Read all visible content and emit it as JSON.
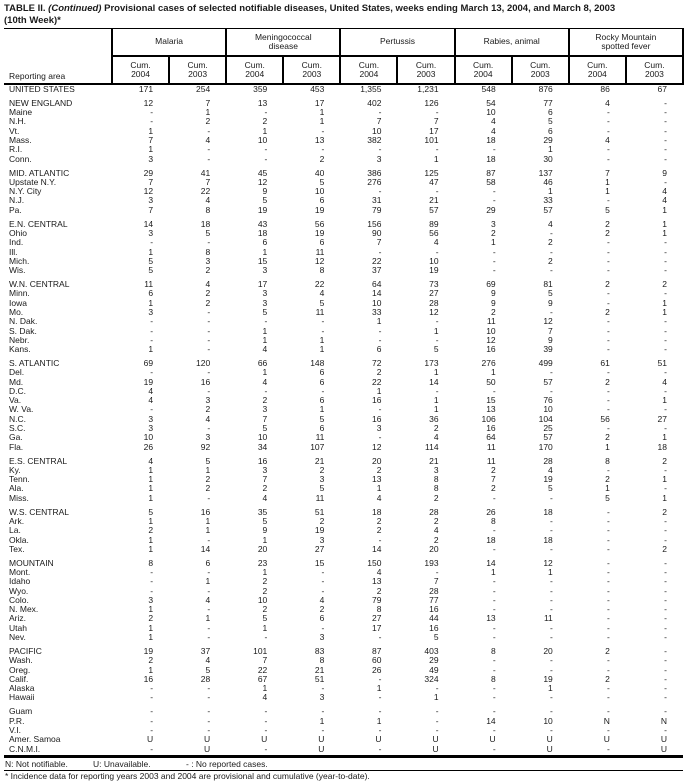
{
  "title": {
    "prefix": "TABLE II.",
    "continued": "(Continued)",
    "rest": "Provisional cases of selected notifiable diseases, United States, weeks ending March 13, 2004, and March 8, 2003",
    "line2": "(10th Week)*"
  },
  "table": {
    "reporting_area_label": "Reporting area",
    "groups": [
      "Malaria",
      "Meningococcal\ndisease",
      "Pertussis",
      "Rabies, animal",
      "Rocky Mountain\nspotted fever"
    ],
    "col_label": "Cum.",
    "col_years": [
      "2004",
      "2003"
    ],
    "rows": [
      {
        "area": "UNITED STATES",
        "values": [
          "171",
          "254",
          "359",
          "453",
          "1,355",
          "1,231",
          "548",
          "876",
          "86",
          "67"
        ],
        "gap_after": true
      },
      {
        "area": "NEW ENGLAND",
        "values": [
          "12",
          "7",
          "13",
          "17",
          "402",
          "126",
          "54",
          "77",
          "4",
          "-"
        ]
      },
      {
        "area": "Maine",
        "values": [
          "-",
          "1",
          "-",
          "1",
          "-",
          "-",
          "10",
          "6",
          "-",
          "-"
        ]
      },
      {
        "area": "N.H.",
        "values": [
          "-",
          "2",
          "2",
          "1",
          "7",
          "7",
          "4",
          "5",
          "-",
          "-"
        ]
      },
      {
        "area": "Vt.",
        "values": [
          "1",
          "-",
          "1",
          "-",
          "10",
          "17",
          "4",
          "6",
          "-",
          "-"
        ]
      },
      {
        "area": "Mass.",
        "values": [
          "7",
          "4",
          "10",
          "13",
          "382",
          "101",
          "18",
          "29",
          "4",
          "-"
        ]
      },
      {
        "area": "R.I.",
        "values": [
          "1",
          "-",
          "-",
          "-",
          "-",
          "-",
          "-",
          "1",
          "-",
          "-"
        ]
      },
      {
        "area": "Conn.",
        "values": [
          "3",
          "-",
          "-",
          "2",
          "3",
          "1",
          "18",
          "30",
          "-",
          "-"
        ],
        "gap_after": true
      },
      {
        "area": "MID. ATLANTIC",
        "values": [
          "29",
          "41",
          "45",
          "40",
          "386",
          "125",
          "87",
          "137",
          "7",
          "9"
        ]
      },
      {
        "area": "Upstate N.Y.",
        "values": [
          "7",
          "7",
          "12",
          "5",
          "276",
          "47",
          "58",
          "46",
          "1",
          "-"
        ]
      },
      {
        "area": "N.Y. City",
        "values": [
          "12",
          "22",
          "9",
          "10",
          "-",
          "-",
          "-",
          "1",
          "1",
          "4"
        ]
      },
      {
        "area": "N.J.",
        "values": [
          "3",
          "4",
          "5",
          "6",
          "31",
          "21",
          "-",
          "33",
          "-",
          "4"
        ]
      },
      {
        "area": "Pa.",
        "values": [
          "7",
          "8",
          "19",
          "19",
          "79",
          "57",
          "29",
          "57",
          "5",
          "1"
        ],
        "gap_after": true
      },
      {
        "area": "E.N. CENTRAL",
        "values": [
          "14",
          "18",
          "43",
          "56",
          "156",
          "89",
          "3",
          "4",
          "2",
          "1"
        ]
      },
      {
        "area": "Ohio",
        "values": [
          "3",
          "5",
          "18",
          "19",
          "90",
          "56",
          "2",
          "-",
          "2",
          "1"
        ]
      },
      {
        "area": "Ind.",
        "values": [
          "-",
          "-",
          "6",
          "6",
          "7",
          "4",
          "1",
          "2",
          "-",
          "-"
        ]
      },
      {
        "area": "Ill.",
        "values": [
          "1",
          "8",
          "1",
          "11",
          "-",
          "-",
          "-",
          "-",
          "-",
          "-"
        ]
      },
      {
        "area": "Mich.",
        "values": [
          "5",
          "3",
          "15",
          "12",
          "22",
          "10",
          "-",
          "2",
          "-",
          "-"
        ]
      },
      {
        "area": "Wis.",
        "values": [
          "5",
          "2",
          "3",
          "8",
          "37",
          "19",
          "-",
          "-",
          "-",
          "-"
        ],
        "gap_after": true
      },
      {
        "area": "W.N. CENTRAL",
        "values": [
          "11",
          "4",
          "17",
          "22",
          "64",
          "73",
          "69",
          "81",
          "2",
          "2"
        ]
      },
      {
        "area": "Minn.",
        "values": [
          "6",
          "2",
          "3",
          "4",
          "14",
          "27",
          "9",
          "5",
          "-",
          "-"
        ]
      },
      {
        "area": "Iowa",
        "values": [
          "1",
          "2",
          "3",
          "5",
          "10",
          "28",
          "9",
          "9",
          "-",
          "1"
        ]
      },
      {
        "area": "Mo.",
        "values": [
          "3",
          "-",
          "5",
          "11",
          "33",
          "12",
          "2",
          "-",
          "2",
          "1"
        ]
      },
      {
        "area": "N. Dak.",
        "values": [
          "-",
          "-",
          "-",
          "-",
          "1",
          "-",
          "11",
          "12",
          "-",
          "-"
        ]
      },
      {
        "area": "S. Dak.",
        "values": [
          "-",
          "-",
          "1",
          "-",
          "-",
          "1",
          "10",
          "7",
          "-",
          "-"
        ]
      },
      {
        "area": "Nebr.",
        "values": [
          "-",
          "-",
          "1",
          "1",
          "-",
          "-",
          "12",
          "9",
          "-",
          "-"
        ]
      },
      {
        "area": "Kans.",
        "values": [
          "1",
          "-",
          "4",
          "1",
          "6",
          "5",
          "16",
          "39",
          "-",
          "-"
        ],
        "gap_after": true
      },
      {
        "area": "S. ATLANTIC",
        "values": [
          "69",
          "120",
          "66",
          "148",
          "72",
          "173",
          "276",
          "499",
          "61",
          "51"
        ]
      },
      {
        "area": "Del.",
        "values": [
          "-",
          "-",
          "1",
          "6",
          "2",
          "1",
          "1",
          "-",
          "-",
          "-"
        ]
      },
      {
        "area": "Md.",
        "values": [
          "19",
          "16",
          "4",
          "6",
          "22",
          "14",
          "50",
          "57",
          "2",
          "4"
        ]
      },
      {
        "area": "D.C.",
        "values": [
          "4",
          "-",
          "-",
          "-",
          "1",
          "-",
          "-",
          "-",
          "-",
          "-"
        ]
      },
      {
        "area": "Va.",
        "values": [
          "4",
          "3",
          "2",
          "6",
          "16",
          "1",
          "15",
          "76",
          "-",
          "1"
        ]
      },
      {
        "area": "W. Va.",
        "values": [
          "-",
          "2",
          "3",
          "1",
          "-",
          "1",
          "13",
          "10",
          "-",
          "-"
        ]
      },
      {
        "area": "N.C.",
        "values": [
          "3",
          "4",
          "7",
          "5",
          "16",
          "36",
          "106",
          "104",
          "56",
          "27"
        ]
      },
      {
        "area": "S.C.",
        "values": [
          "3",
          "-",
          "5",
          "6",
          "3",
          "2",
          "16",
          "25",
          "-",
          "-"
        ]
      },
      {
        "area": "Ga.",
        "values": [
          "10",
          "3",
          "10",
          "11",
          "-",
          "4",
          "64",
          "57",
          "2",
          "1"
        ]
      },
      {
        "area": "Fla.",
        "values": [
          "26",
          "92",
          "34",
          "107",
          "12",
          "114",
          "11",
          "170",
          "1",
          "18"
        ],
        "gap_after": true
      },
      {
        "area": "E.S. CENTRAL",
        "values": [
          "4",
          "5",
          "16",
          "21",
          "20",
          "21",
          "11",
          "28",
          "8",
          "2"
        ]
      },
      {
        "area": "Ky.",
        "values": [
          "1",
          "1",
          "3",
          "2",
          "2",
          "3",
          "2",
          "4",
          "-",
          "-"
        ]
      },
      {
        "area": "Tenn.",
        "values": [
          "1",
          "2",
          "7",
          "3",
          "13",
          "8",
          "7",
          "19",
          "2",
          "1"
        ]
      },
      {
        "area": "Ala.",
        "values": [
          "1",
          "2",
          "2",
          "5",
          "1",
          "8",
          "2",
          "5",
          "1",
          "-"
        ]
      },
      {
        "area": "Miss.",
        "values": [
          "1",
          "-",
          "4",
          "11",
          "4",
          "2",
          "-",
          "-",
          "5",
          "1"
        ],
        "gap_after": true
      },
      {
        "area": "W.S. CENTRAL",
        "values": [
          "5",
          "16",
          "35",
          "51",
          "18",
          "28",
          "26",
          "18",
          "-",
          "2"
        ]
      },
      {
        "area": "Ark.",
        "values": [
          "1",
          "1",
          "5",
          "2",
          "2",
          "2",
          "8",
          "-",
          "-",
          "-"
        ]
      },
      {
        "area": "La.",
        "values": [
          "2",
          "1",
          "9",
          "19",
          "2",
          "4",
          "-",
          "-",
          "-",
          "-"
        ]
      },
      {
        "area": "Okla.",
        "values": [
          "1",
          "-",
          "1",
          "3",
          "-",
          "2",
          "18",
          "18",
          "-",
          "-"
        ]
      },
      {
        "area": "Tex.",
        "values": [
          "1",
          "14",
          "20",
          "27",
          "14",
          "20",
          "-",
          "-",
          "-",
          "2"
        ],
        "gap_after": true
      },
      {
        "area": "MOUNTAIN",
        "values": [
          "8",
          "6",
          "23",
          "15",
          "150",
          "193",
          "14",
          "12",
          "-",
          "-"
        ]
      },
      {
        "area": "Mont.",
        "values": [
          "-",
          "-",
          "1",
          "-",
          "4",
          "-",
          "1",
          "1",
          "-",
          "-"
        ]
      },
      {
        "area": "Idaho",
        "values": [
          "-",
          "1",
          "2",
          "-",
          "13",
          "7",
          "-",
          "-",
          "-",
          "-"
        ]
      },
      {
        "area": "Wyo.",
        "values": [
          "-",
          "-",
          "2",
          "-",
          "2",
          "28",
          "-",
          "-",
          "-",
          "-"
        ]
      },
      {
        "area": "Colo.",
        "values": [
          "3",
          "4",
          "10",
          "4",
          "79",
          "77",
          "-",
          "-",
          "-",
          "-"
        ]
      },
      {
        "area": "N. Mex.",
        "values": [
          "1",
          "-",
          "2",
          "2",
          "8",
          "16",
          "-",
          "-",
          "-",
          "-"
        ]
      },
      {
        "area": "Ariz.",
        "values": [
          "2",
          "1",
          "5",
          "6",
          "27",
          "44",
          "13",
          "11",
          "-",
          "-"
        ]
      },
      {
        "area": "Utah",
        "values": [
          "1",
          "-",
          "1",
          "-",
          "17",
          "16",
          "-",
          "-",
          "-",
          "-"
        ]
      },
      {
        "area": "Nev.",
        "values": [
          "1",
          "-",
          "-",
          "3",
          "-",
          "5",
          "-",
          "-",
          "-",
          "-"
        ],
        "gap_after": true
      },
      {
        "area": "PACIFIC",
        "values": [
          "19",
          "37",
          "101",
          "83",
          "87",
          "403",
          "8",
          "20",
          "2",
          "-"
        ]
      },
      {
        "area": "Wash.",
        "values": [
          "2",
          "4",
          "7",
          "8",
          "60",
          "29",
          "-",
          "-",
          "-",
          "-"
        ]
      },
      {
        "area": "Oreg.",
        "values": [
          "1",
          "5",
          "22",
          "21",
          "26",
          "49",
          "-",
          "-",
          "-",
          "-"
        ]
      },
      {
        "area": "Calif.",
        "values": [
          "16",
          "28",
          "67",
          "51",
          "-",
          "324",
          "8",
          "19",
          "2",
          "-"
        ]
      },
      {
        "area": "Alaska",
        "values": [
          "-",
          "-",
          "1",
          "-",
          "1",
          "-",
          "-",
          "1",
          "-",
          "-"
        ]
      },
      {
        "area": "Hawaii",
        "values": [
          "-",
          "-",
          "4",
          "3",
          "-",
          "1",
          "-",
          "-",
          "-",
          "-"
        ],
        "gap_after": true
      },
      {
        "area": "Guam",
        "values": [
          "-",
          "-",
          "-",
          "-",
          "-",
          "-",
          "-",
          "-",
          "-",
          "-"
        ]
      },
      {
        "area": "P.R.",
        "values": [
          "-",
          "-",
          "-",
          "1",
          "1",
          "-",
          "14",
          "10",
          "N",
          "N"
        ]
      },
      {
        "area": "V.I.",
        "values": [
          "-",
          "-",
          "-",
          "-",
          "-",
          "-",
          "-",
          "-",
          "-",
          "-"
        ]
      },
      {
        "area": "Amer. Samoa",
        "values": [
          "U",
          "U",
          "U",
          "U",
          "U",
          "U",
          "U",
          "U",
          "U",
          "U"
        ]
      },
      {
        "area": "C.N.M.I.",
        "values": [
          "-",
          "U",
          "-",
          "U",
          "-",
          "U",
          "-",
          "U",
          "-",
          "U"
        ]
      }
    ]
  },
  "footnotes": {
    "legend": [
      "N: Not notifiable.",
      "U: Unavailable.",
      "- : No reported cases."
    ],
    "note": "* Incidence data for reporting years 2003 and 2004 are provisional and cumulative (year-to-date)."
  }
}
